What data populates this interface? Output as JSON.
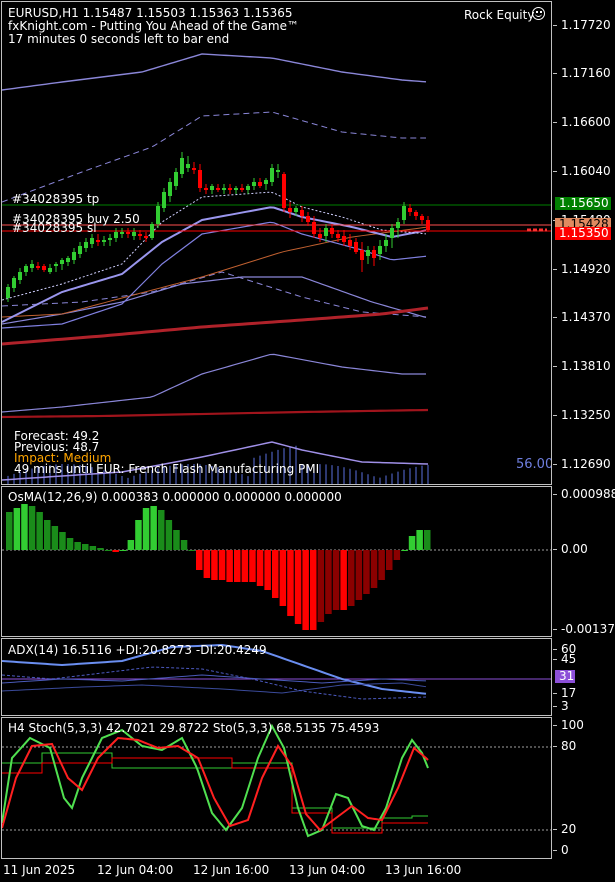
{
  "header": {
    "symbol_line": "EURUSD,H1  1.15487 1.15503 1.15363 1.15365",
    "branding": "fxKnight.com - Putting You Ahead of the Game™",
    "countdown": "17 minutes 0 seconds left to bar end",
    "account_label": "Rock Equity"
  },
  "trade_lines": {
    "tp_label": "#34028395 tp",
    "buy_label": "#34028395 buy 2.50",
    "sl_label": "#34028395 sl"
  },
  "news": {
    "forecast": "Forecast: 49.2",
    "previous": "Previous: 48.7",
    "impact": "Impact: Medium",
    "event": "49 mins until EUR: French Flash Manufacturing PMI",
    "volume_value": "56.00"
  },
  "price_axis": {
    "labels": [
      "1.17720",
      "1.17160",
      "1.16600",
      "1.16040",
      "1.15480",
      "1.14920",
      "1.14370",
      "1.13810",
      "1.13250",
      "1.12690"
    ],
    "tp_price": "1.15650",
    "mid_tag": "1.15428",
    "current_price": "1.15350"
  },
  "osma": {
    "title": "OsMA(12,26,9) 0.000383 0.000000 0.000000 0.000000",
    "axis_labels": [
      "0.000988",
      "0.00",
      "-0.001371"
    ]
  },
  "adx": {
    "title": "ADX(14) 16.5116 +DI:20.8273 -DI:20.4249",
    "axis_labels": [
      "60",
      "45",
      "31",
      "17",
      "3"
    ],
    "highlight_label": "31"
  },
  "stoch": {
    "title": "H4 Stoch(5,3,3) 42.7021 29.8722  Sto(5,3,3) 68.5135 75.4593",
    "axis_labels": [
      "100",
      "80",
      "20",
      "0"
    ]
  },
  "time_axis": [
    "11 Jun 2025",
    "12 Jun 04:00",
    "12 Jun 16:00",
    "13 Jun 04:00",
    "13 Jun 16:00"
  ],
  "colors": {
    "bull_candle": "#32cd32",
    "bear_candle": "#ff0000",
    "tp_line": "#008000",
    "sl_line": "#ff0000",
    "impact": "#ffa500",
    "adx_tag": "#8c4fd8",
    "sl_tag": "#ff0000",
    "entry_tag": "#e08a60",
    "tp_tag": "#008000"
  }
}
